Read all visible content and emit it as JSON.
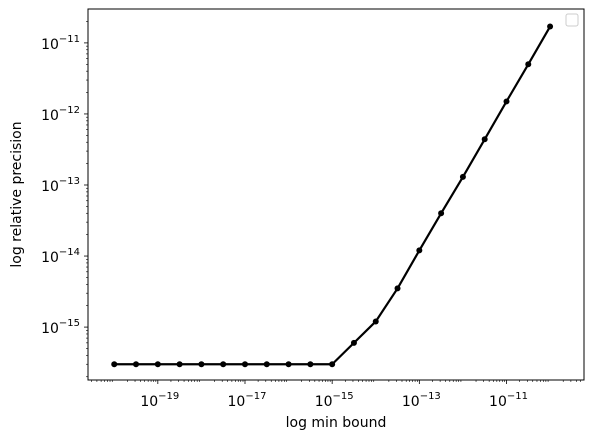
{
  "chart_data": {
    "type": "line",
    "title": "",
    "xlabel": "log min bound",
    "ylabel": "log relative precision",
    "x_scale": "log",
    "y_scale": "log",
    "xlim": [
      2.5e-21,
      6e-10
    ],
    "ylim": [
      1.8e-16,
      3e-11
    ],
    "grid": false,
    "legend": {
      "placement": "top-right",
      "entries": []
    },
    "x_ticks": [
      {
        "value": 1e-19,
        "base": "10",
        "exp": "−19"
      },
      {
        "value": 1e-17,
        "base": "10",
        "exp": "−17"
      },
      {
        "value": 1e-15,
        "base": "10",
        "exp": "−15"
      },
      {
        "value": 1e-13,
        "base": "10",
        "exp": "−13"
      },
      {
        "value": 1e-11,
        "base": "10",
        "exp": "−11"
      }
    ],
    "y_ticks": [
      {
        "value": 1e-15,
        "base": "10",
        "exp": "−15"
      },
      {
        "value": 1e-14,
        "base": "10",
        "exp": "−14"
      },
      {
        "value": 1e-13,
        "base": "10",
        "exp": "−13"
      },
      {
        "value": 1e-12,
        "base": "10",
        "exp": "−12"
      },
      {
        "value": 1e-11,
        "base": "10",
        "exp": "−11"
      }
    ],
    "series": [
      {
        "color": "#000000",
        "marker": "circle",
        "x": [
          1e-20,
          3.16e-20,
          1e-19,
          3.16e-19,
          1e-18,
          3.16e-18,
          1e-17,
          3.16e-17,
          1e-16,
          3.16e-16,
          1e-15,
          3.16e-15,
          1e-14,
          3.16e-14,
          1e-13,
          3.16e-13,
          1e-12,
          3.16e-12,
          1e-11,
          3.16e-11,
          1e-10
        ],
        "y": [
          3e-16,
          3e-16,
          3e-16,
          3e-16,
          3e-16,
          3e-16,
          3e-16,
          3e-16,
          3e-16,
          3e-16,
          3e-16,
          6e-16,
          1.2e-15,
          3.5e-15,
          1.2e-14,
          4e-14,
          1.3e-13,
          4.4e-13,
          1.5e-12,
          5e-12,
          1.7e-11
        ]
      }
    ]
  }
}
